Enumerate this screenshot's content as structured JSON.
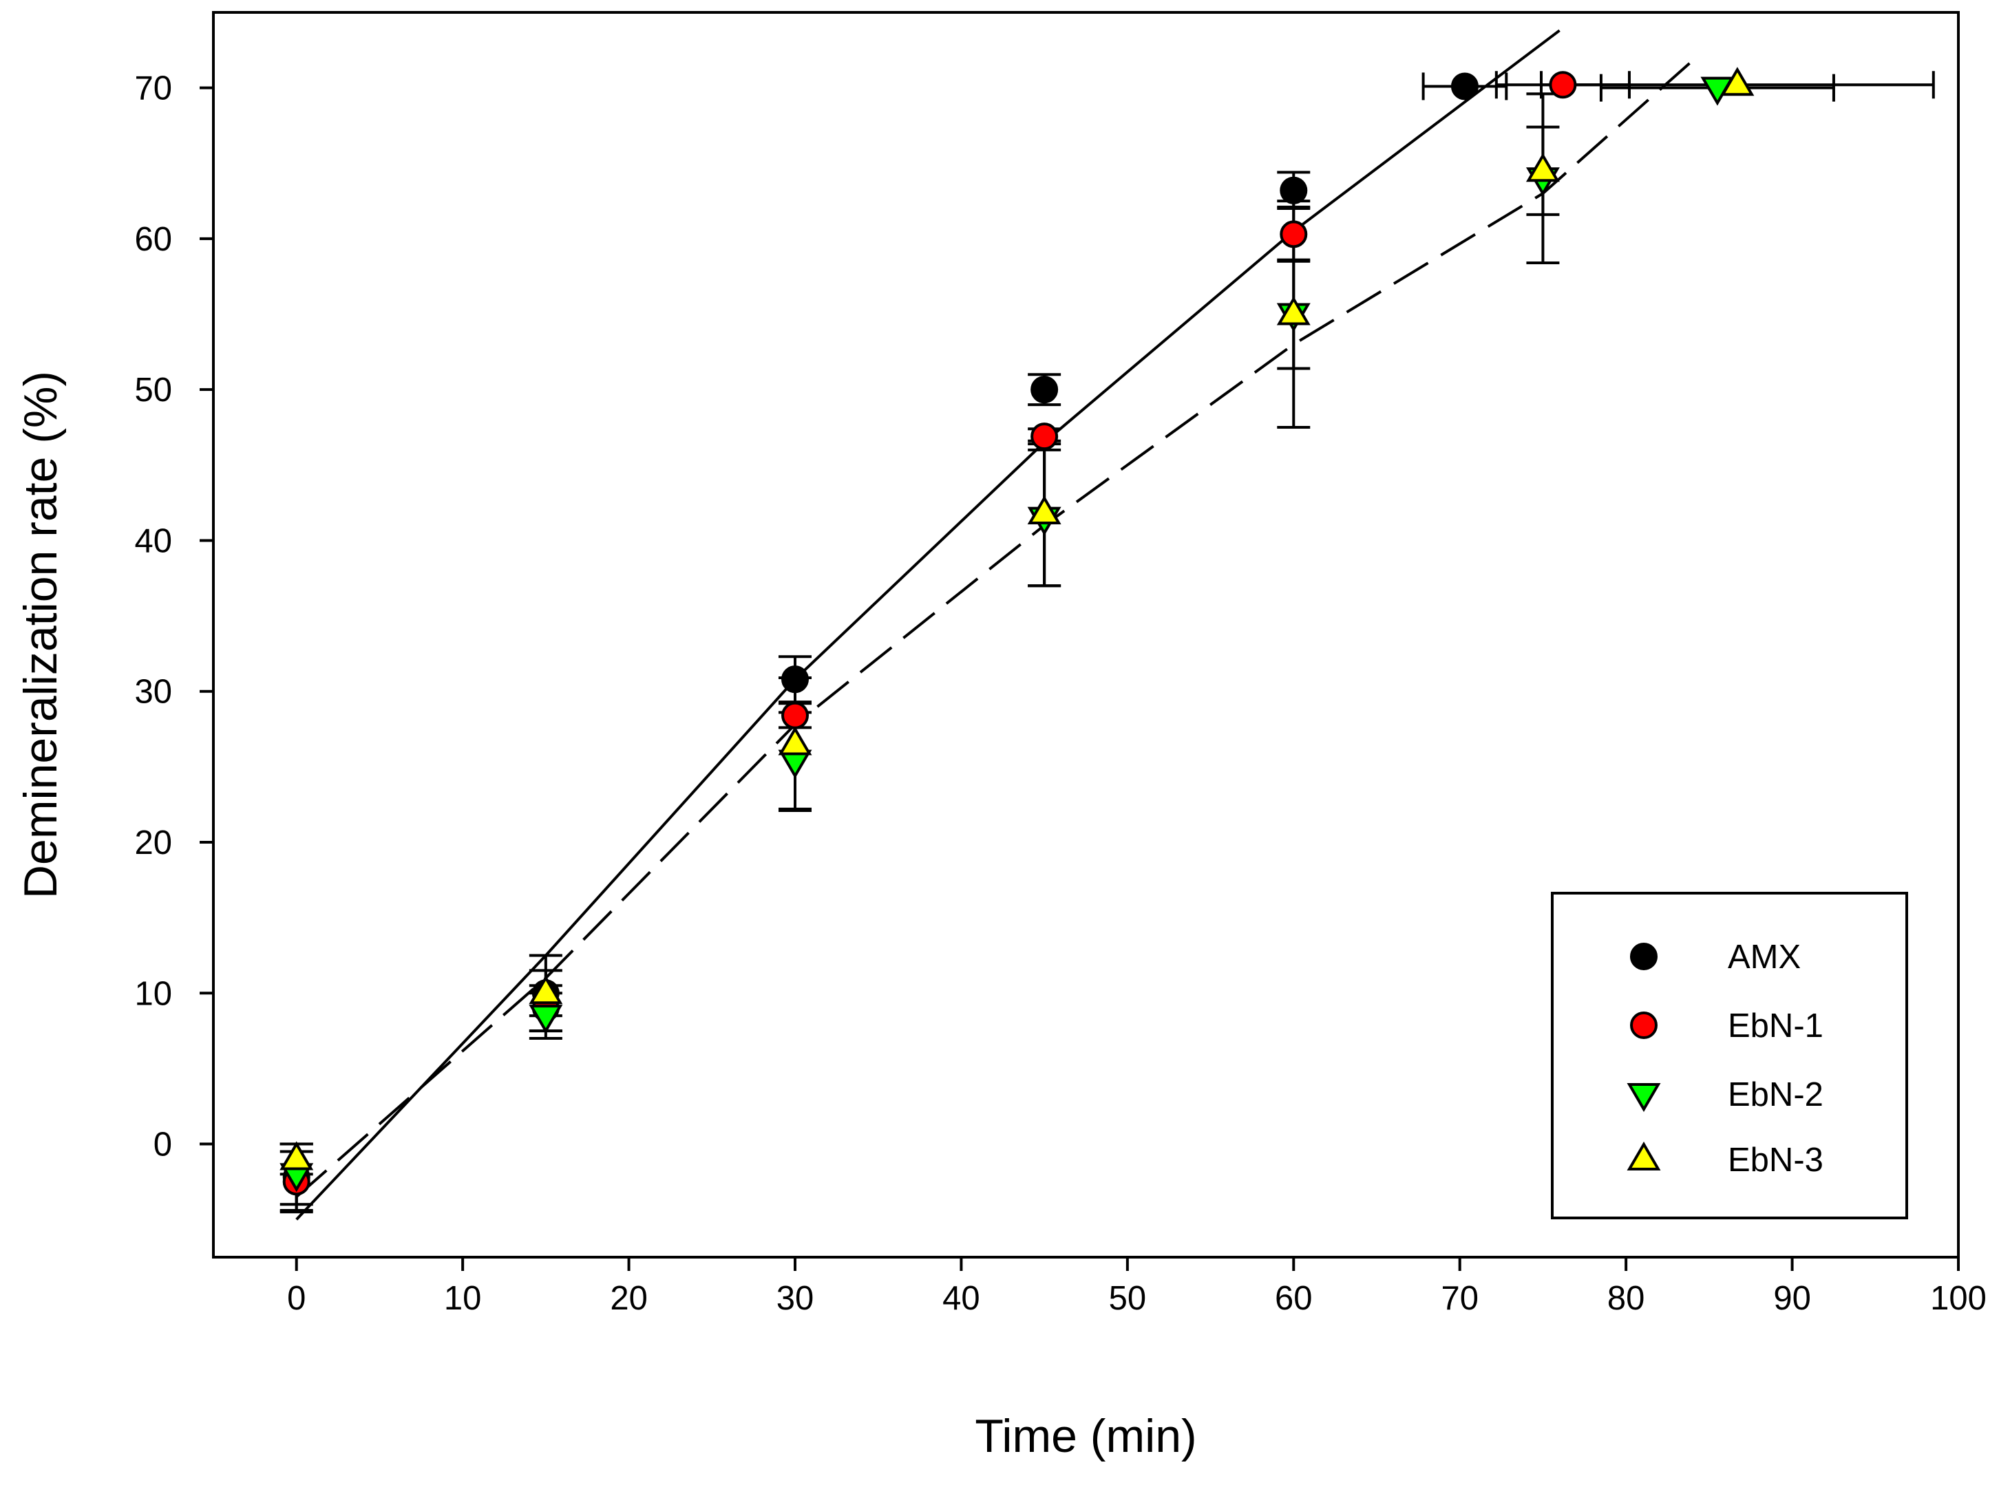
{
  "chart_data": {
    "type": "scatter",
    "title": "",
    "xlabel": "Time (min)",
    "ylabel": "Demineralization rate (%)",
    "xlim": [
      -5,
      100
    ],
    "ylim": [
      -7.5,
      75
    ],
    "x_ticks": [
      "0",
      "10",
      "20",
      "30",
      "40",
      "50",
      "60",
      "70",
      "80",
      "90",
      "100"
    ],
    "y_ticks": [
      "0",
      "10",
      "20",
      "30",
      "40",
      "50",
      "60",
      "70"
    ],
    "grid": false,
    "legend_position": "bottom-right",
    "series": [
      {
        "name": "AMX",
        "marker": "circle",
        "color": "#000000",
        "points": [
          {
            "x": 0,
            "y": -2.2,
            "y_err": 2.2
          },
          {
            "x": 15,
            "y": 10.0,
            "y_err": 1.5
          },
          {
            "x": 30,
            "y": 30.8,
            "y_err": 1.5
          },
          {
            "x": 45,
            "y": 50.0,
            "y_err": 1.0
          },
          {
            "x": 60,
            "y": 63.2,
            "y_err": 1.2
          },
          {
            "x": 70.3,
            "y": 70.1,
            "x_err": 2.5
          }
        ]
      },
      {
        "name": "EbN-1",
        "marker": "circle",
        "color": "#ff0000",
        "points": [
          {
            "x": 0,
            "y": -2.5,
            "y_err": 2.0
          },
          {
            "x": 15,
            "y": 9.0,
            "y_err": 1.5
          },
          {
            "x": 30,
            "y": 28.4,
            "y_err": 0.8
          },
          {
            "x": 45,
            "y": 46.9,
            "y_err": 0.5
          },
          {
            "x": 60,
            "y": 60.3,
            "y_err": 1.8
          },
          {
            "x": 76.2,
            "y": 70.2,
            "x_err": 4.0
          }
        ]
      },
      {
        "name": "EbN-2",
        "marker": "triangle-down",
        "color": "#00ff00",
        "points": [
          {
            "x": 0,
            "y": -2.0,
            "y_err": 2.0
          },
          {
            "x": 15,
            "y": 8.5,
            "y_err": 1.5
          },
          {
            "x": 30,
            "y": 25.4,
            "y_err": 3.2
          },
          {
            "x": 45,
            "y": 41.5,
            "y_err": 4.5
          },
          {
            "x": 60,
            "y": 55.0,
            "y_err": 7.5
          },
          {
            "x": 75,
            "y": 64.0,
            "y_err": 5.6
          },
          {
            "x": 85.5,
            "y": 70.0,
            "x_err": 7.0
          }
        ]
      },
      {
        "name": "EbN-3",
        "marker": "triangle-up",
        "color": "#ffff00",
        "points": [
          {
            "x": 0,
            "y": -1.0,
            "y_err": 1.0
          },
          {
            "x": 15,
            "y": 10.0,
            "y_err": 2.5
          },
          {
            "x": 30,
            "y": 26.5,
            "y_err": 4.4
          },
          {
            "x": 45,
            "y": 41.8,
            "y_err": 4.8
          },
          {
            "x": 60,
            "y": 55.0,
            "y_err": 3.6
          },
          {
            "x": 75,
            "y": 64.5,
            "y_err": 2.9
          },
          {
            "x": 86.7,
            "y": 70.2,
            "x_err": 11.8
          }
        ]
      }
    ],
    "fit_lines": [
      {
        "style": "solid",
        "points": [
          [
            0,
            -5.0
          ],
          [
            15,
            12.5
          ],
          [
            30,
            30.8
          ],
          [
            45,
            46.5
          ],
          [
            60,
            60.5
          ],
          [
            76,
            73.8
          ]
        ]
      },
      {
        "style": "dashed",
        "points": [
          [
            0,
            -3.5
          ],
          [
            15,
            11.0
          ],
          [
            30,
            27.8
          ],
          [
            45,
            41.0
          ],
          [
            60,
            53.0
          ],
          [
            75,
            63.0
          ],
          [
            84,
            71.8
          ]
        ]
      }
    ]
  }
}
